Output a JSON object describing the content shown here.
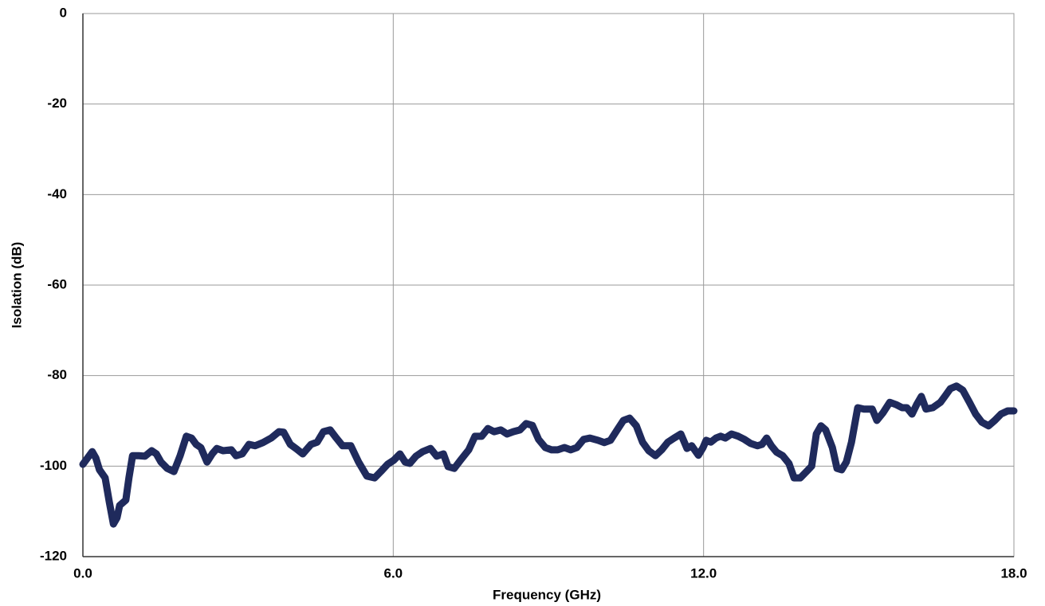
{
  "chart_data": {
    "type": "line",
    "xlabel": "Frequency (GHz)",
    "ylabel": "Isolation (dB)",
    "xlim": [
      0,
      18
    ],
    "xticks": [
      {
        "value": 0,
        "label": "0.0"
      },
      {
        "value": 6,
        "label": "6.0"
      },
      {
        "value": 12,
        "label": "12.0"
      },
      {
        "value": 18,
        "label": "18.0"
      }
    ],
    "ylim": [
      -120,
      0
    ],
    "yticks": [
      0,
      -20,
      -40,
      -60,
      -80,
      -100,
      -120
    ],
    "grid": true,
    "series": [
      {
        "color": "#1f2a5c",
        "x": [
          0,
          0.09,
          0.18,
          0.25,
          0.32,
          0.43,
          0.51,
          0.59,
          0.66,
          0.71,
          0.83,
          0.89,
          0.96,
          1.08,
          1.2,
          1.33,
          1.42,
          1.51,
          1.63,
          1.76,
          1.88,
          2.0,
          2.1,
          2.19,
          2.28,
          2.4,
          2.5,
          2.59,
          2.71,
          2.87,
          2.96,
          3.08,
          3.21,
          3.33,
          3.48,
          3.64,
          3.79,
          3.88,
          4.01,
          4.13,
          4.25,
          4.41,
          4.53,
          4.65,
          4.78,
          4.9,
          5.02,
          5.18,
          5.33,
          5.49,
          5.64,
          5.76,
          5.89,
          6.01,
          6.13,
          6.23,
          6.32,
          6.44,
          6.57,
          6.72,
          6.84,
          6.97,
          7.06,
          7.18,
          7.3,
          7.46,
          7.58,
          7.71,
          7.83,
          7.95,
          8.08,
          8.2,
          8.32,
          8.45,
          8.57,
          8.69,
          8.81,
          8.94,
          9.06,
          9.18,
          9.31,
          9.43,
          9.55,
          9.68,
          9.8,
          9.96,
          10.08,
          10.2,
          10.33,
          10.45,
          10.57,
          10.7,
          10.82,
          10.94,
          11.07,
          11.19,
          11.31,
          11.43,
          11.56,
          11.68,
          11.77,
          11.9,
          11.99,
          12.05,
          12.14,
          12.24,
          12.33,
          12.42,
          12.54,
          12.67,
          12.79,
          12.91,
          13.04,
          13.13,
          13.22,
          13.31,
          13.41,
          13.53,
          13.65,
          13.75,
          13.87,
          13.99,
          14.09,
          14.18,
          14.27,
          14.36,
          14.49,
          14.58,
          14.67,
          14.76,
          14.86,
          14.98,
          15.1,
          15.26,
          15.35,
          15.47,
          15.6,
          15.72,
          15.84,
          15.93,
          16.03,
          16.12,
          16.21,
          16.3,
          16.43,
          16.58,
          16.67,
          16.77,
          16.89,
          17.01,
          17.14,
          17.26,
          17.38,
          17.51,
          17.63,
          17.75,
          17.88,
          18.0
        ],
        "values": [
          -99.6,
          -98.2,
          -96.8,
          -98.2,
          -100.8,
          -102.6,
          -107.9,
          -112.8,
          -111.4,
          -108.7,
          -107.5,
          -102.6,
          -97.7,
          -97.7,
          -97.8,
          -96.6,
          -97.3,
          -99.1,
          -100.5,
          -101.2,
          -97.7,
          -93.4,
          -93.8,
          -95.2,
          -95.9,
          -99.1,
          -97.3,
          -96.1,
          -96.6,
          -96.4,
          -97.7,
          -97.3,
          -95.2,
          -95.5,
          -94.8,
          -93.8,
          -92.4,
          -92.5,
          -95.2,
          -96.2,
          -97.3,
          -95.2,
          -94.7,
          -92.4,
          -92.0,
          -93.8,
          -95.5,
          -95.5,
          -99.1,
          -102.2,
          -102.6,
          -101.2,
          -99.6,
          -98.7,
          -97.3,
          -99.1,
          -99.4,
          -97.8,
          -96.8,
          -96.1,
          -97.8,
          -97.3,
          -100.1,
          -100.5,
          -98.7,
          -96.4,
          -93.4,
          -93.4,
          -91.7,
          -92.4,
          -92.0,
          -92.9,
          -92.4,
          -92.0,
          -90.6,
          -91.0,
          -94.1,
          -95.9,
          -96.4,
          -96.4,
          -95.9,
          -96.4,
          -95.9,
          -94.1,
          -93.8,
          -94.3,
          -94.8,
          -94.3,
          -92.0,
          -89.9,
          -89.4,
          -91.1,
          -94.7,
          -96.6,
          -97.7,
          -96.4,
          -94.7,
          -93.8,
          -92.9,
          -96.1,
          -95.5,
          -97.6,
          -95.9,
          -94.3,
          -94.7,
          -93.8,
          -93.4,
          -93.8,
          -92.9,
          -93.4,
          -94.1,
          -95.0,
          -95.5,
          -95.2,
          -93.8,
          -95.5,
          -96.9,
          -97.7,
          -99.4,
          -102.6,
          -102.6,
          -101.2,
          -100.0,
          -92.9,
          -91.1,
          -92.0,
          -95.9,
          -100.5,
          -100.8,
          -99.1,
          -94.7,
          -87.1,
          -87.4,
          -87.4,
          -89.9,
          -88.2,
          -85.9,
          -86.4,
          -87.1,
          -87.1,
          -88.5,
          -86.4,
          -84.6,
          -87.4,
          -87.1,
          -85.9,
          -84.5,
          -82.9,
          -82.3,
          -83.2,
          -85.9,
          -88.5,
          -90.3,
          -91.1,
          -89.9,
          -88.5,
          -87.8,
          -87.8
        ]
      }
    ]
  }
}
